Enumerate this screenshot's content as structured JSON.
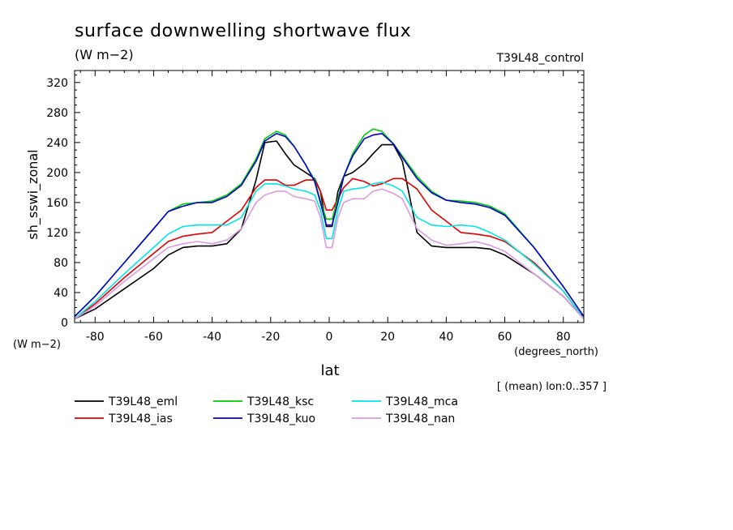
{
  "chart_data": {
    "type": "line",
    "title": "surface downwelling shortwave flux",
    "units": "(W m−2)",
    "experiment_label": "T39L48_control",
    "ylabel": "sh_sswi_zonal",
    "yunit_label": "(W m−2)",
    "xlabel": "lat",
    "xunit_label": "(degrees_north)",
    "region_note": "[ (mean) lon:0..357 ]",
    "xlim": [
      -87,
      87
    ],
    "ylim": [
      0,
      336
    ],
    "x_ticks": [
      -80,
      -60,
      -40,
      -20,
      0,
      20,
      40,
      60,
      80
    ],
    "y_ticks": [
      0,
      40,
      80,
      120,
      160,
      200,
      240,
      280,
      320
    ],
    "x_minor_step": 5,
    "y_minor_step": 10,
    "legend_position": "bottom",
    "series": [
      {
        "name": "T39L48_eml",
        "color": "#000000",
        "x": [
          -87,
          -80,
          -70,
          -60,
          -55,
          -50,
          -45,
          -40,
          -35,
          -30,
          -25,
          -22,
          -18,
          -15,
          -12,
          -8,
          -5,
          -3,
          -1,
          1,
          3,
          5,
          8,
          12,
          15,
          18,
          22,
          25,
          30,
          35,
          40,
          45,
          50,
          55,
          60,
          70,
          80,
          87
        ],
        "y": [
          5,
          18,
          45,
          72,
          90,
          100,
          102,
          102,
          105,
          125,
          190,
          240,
          242,
          225,
          210,
          200,
          192,
          175,
          128,
          128,
          175,
          195,
          200,
          212,
          225,
          237,
          237,
          215,
          120,
          102,
          100,
          100,
          100,
          98,
          90,
          65,
          35,
          5
        ]
      },
      {
        "name": "T39L48_ias",
        "color": "#e00000",
        "x": [
          -87,
          -80,
          -70,
          -60,
          -55,
          -50,
          -45,
          -40,
          -35,
          -30,
          -25,
          -22,
          -18,
          -15,
          -12,
          -8,
          -5,
          -3,
          -1,
          1,
          3,
          5,
          8,
          12,
          15,
          18,
          22,
          25,
          30,
          35,
          40,
          45,
          50,
          55,
          60,
          70,
          80,
          87
        ],
        "y": [
          5,
          25,
          60,
          92,
          108,
          115,
          118,
          120,
          135,
          150,
          180,
          190,
          190,
          183,
          183,
          190,
          190,
          175,
          150,
          150,
          165,
          180,
          192,
          188,
          182,
          185,
          192,
          192,
          178,
          150,
          135,
          120,
          118,
          115,
          108,
          80,
          42,
          5
        ]
      },
      {
        "name": "T39L48_ksc",
        "color": "#00cc00",
        "x": [
          -87,
          -80,
          -70,
          -60,
          -55,
          -50,
          -45,
          -40,
          -35,
          -30,
          -25,
          -22,
          -18,
          -15,
          -12,
          -8,
          -5,
          -3,
          -1,
          1,
          3,
          5,
          8,
          12,
          15,
          18,
          22,
          25,
          30,
          35,
          40,
          45,
          50,
          55,
          60,
          70,
          80,
          87
        ],
        "y": [
          8,
          35,
          80,
          125,
          148,
          158,
          160,
          162,
          170,
          185,
          218,
          245,
          255,
          250,
          235,
          210,
          190,
          162,
          138,
          138,
          165,
          195,
          225,
          250,
          258,
          255,
          238,
          222,
          195,
          175,
          163,
          162,
          160,
          155,
          145,
          100,
          48,
          8
        ]
      },
      {
        "name": "T39L48_kuo",
        "color": "#0000cc",
        "x": [
          -87,
          -80,
          -70,
          -60,
          -55,
          -50,
          -45,
          -40,
          -35,
          -30,
          -25,
          -22,
          -18,
          -15,
          -12,
          -8,
          -5,
          -3,
          -1,
          1,
          3,
          5,
          8,
          12,
          15,
          18,
          22,
          25,
          30,
          35,
          40,
          45,
          50,
          55,
          60,
          70,
          80,
          87
        ],
        "y": [
          8,
          35,
          80,
          125,
          148,
          155,
          160,
          160,
          168,
          183,
          215,
          242,
          252,
          248,
          235,
          210,
          188,
          160,
          130,
          130,
          160,
          195,
          222,
          245,
          250,
          252,
          238,
          220,
          192,
          173,
          163,
          160,
          158,
          153,
          143,
          100,
          48,
          8
        ]
      },
      {
        "name": "T39L48_mca",
        "color": "#00e5e5",
        "x": [
          -87,
          -80,
          -70,
          -60,
          -55,
          -50,
          -45,
          -40,
          -35,
          -30,
          -25,
          -22,
          -18,
          -15,
          -12,
          -8,
          -5,
          -3,
          -1,
          1,
          3,
          5,
          8,
          12,
          15,
          18,
          22,
          25,
          30,
          35,
          40,
          45,
          50,
          55,
          60,
          70,
          80,
          87
        ],
        "y": [
          5,
          28,
          65,
          100,
          118,
          128,
          130,
          130,
          130,
          140,
          175,
          185,
          185,
          182,
          178,
          175,
          170,
          150,
          112,
          112,
          150,
          175,
          178,
          180,
          185,
          187,
          182,
          175,
          140,
          130,
          128,
          130,
          128,
          120,
          110,
          78,
          42,
          5
        ]
      },
      {
        "name": "T39L48_nan",
        "color": "#dd99dd",
        "x": [
          -87,
          -80,
          -70,
          -60,
          -55,
          -50,
          -45,
          -40,
          -35,
          -30,
          -25,
          -22,
          -18,
          -15,
          -12,
          -8,
          -5,
          -3,
          -1,
          1,
          3,
          5,
          8,
          12,
          15,
          18,
          22,
          25,
          30,
          35,
          40,
          45,
          50,
          55,
          60,
          70,
          80,
          87
        ],
        "y": [
          5,
          22,
          55,
          85,
          100,
          105,
          108,
          105,
          110,
          125,
          160,
          170,
          175,
          175,
          168,
          165,
          162,
          140,
          100,
          100,
          140,
          160,
          165,
          165,
          175,
          178,
          172,
          165,
          125,
          110,
          103,
          105,
          108,
          103,
          95,
          65,
          35,
          5
        ]
      }
    ]
  }
}
